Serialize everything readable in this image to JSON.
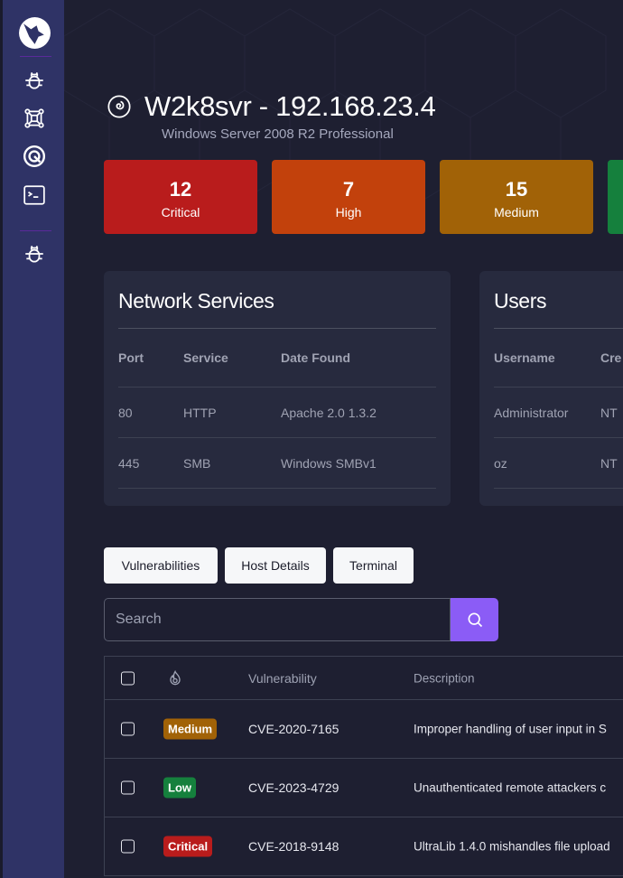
{
  "sidebar": {
    "items": [
      {
        "icon": "wolf-logo-icon"
      },
      {
        "icon": "bug-icon"
      },
      {
        "icon": "network-icon"
      },
      {
        "icon": "target-icon"
      },
      {
        "icon": "terminal-icon"
      },
      {
        "icon": "bug-icon"
      }
    ]
  },
  "host": {
    "title": "W2k8svr - 192.168.23.4",
    "os": "Windows Server 2008 R2 Professional",
    "icon": "spiral-icon"
  },
  "summary": [
    {
      "count": "12",
      "label": "Critical",
      "color": "#b91c1c"
    },
    {
      "count": "7",
      "label": "High",
      "color": "#c2410c"
    },
    {
      "count": "15",
      "label": "Medium",
      "color": "#a16207"
    },
    {
      "color": "#15803d"
    }
  ],
  "network_services": {
    "title": "Network Services",
    "columns": [
      "Port",
      "Service",
      "Date Found"
    ],
    "rows": [
      [
        "80",
        "HTTP",
        "Apache 2.0 1.3.2"
      ],
      [
        "445",
        "SMB",
        "Windows SMBv1"
      ]
    ]
  },
  "users": {
    "title": "Users",
    "columns": [
      "Username",
      "Cre"
    ],
    "rows": [
      [
        "Administrator",
        "NT"
      ],
      [
        "oz",
        "NT"
      ]
    ]
  },
  "tabs": [
    "Vulnerabilities",
    "Host Details",
    "Terminal"
  ],
  "search": {
    "placeholder": "Search",
    "value": ""
  },
  "vulns": {
    "columns": [
      "",
      "severity-flame-icon",
      "Vulnerability",
      "Description"
    ],
    "rows": [
      {
        "severity": "Medium",
        "color": "#a16207",
        "id": "CVE-2020-7165",
        "desc": "Improper handling of user input in S"
      },
      {
        "severity": "Low",
        "color": "#15803d",
        "id": "CVE-2023-4729",
        "desc": "Unauthenticated remote attackers c"
      },
      {
        "severity": "Critical",
        "color": "#b91c1c",
        "id": "CVE-2018-9148",
        "desc": "UltraLib 1.4.0 mishandles file upload"
      }
    ]
  }
}
